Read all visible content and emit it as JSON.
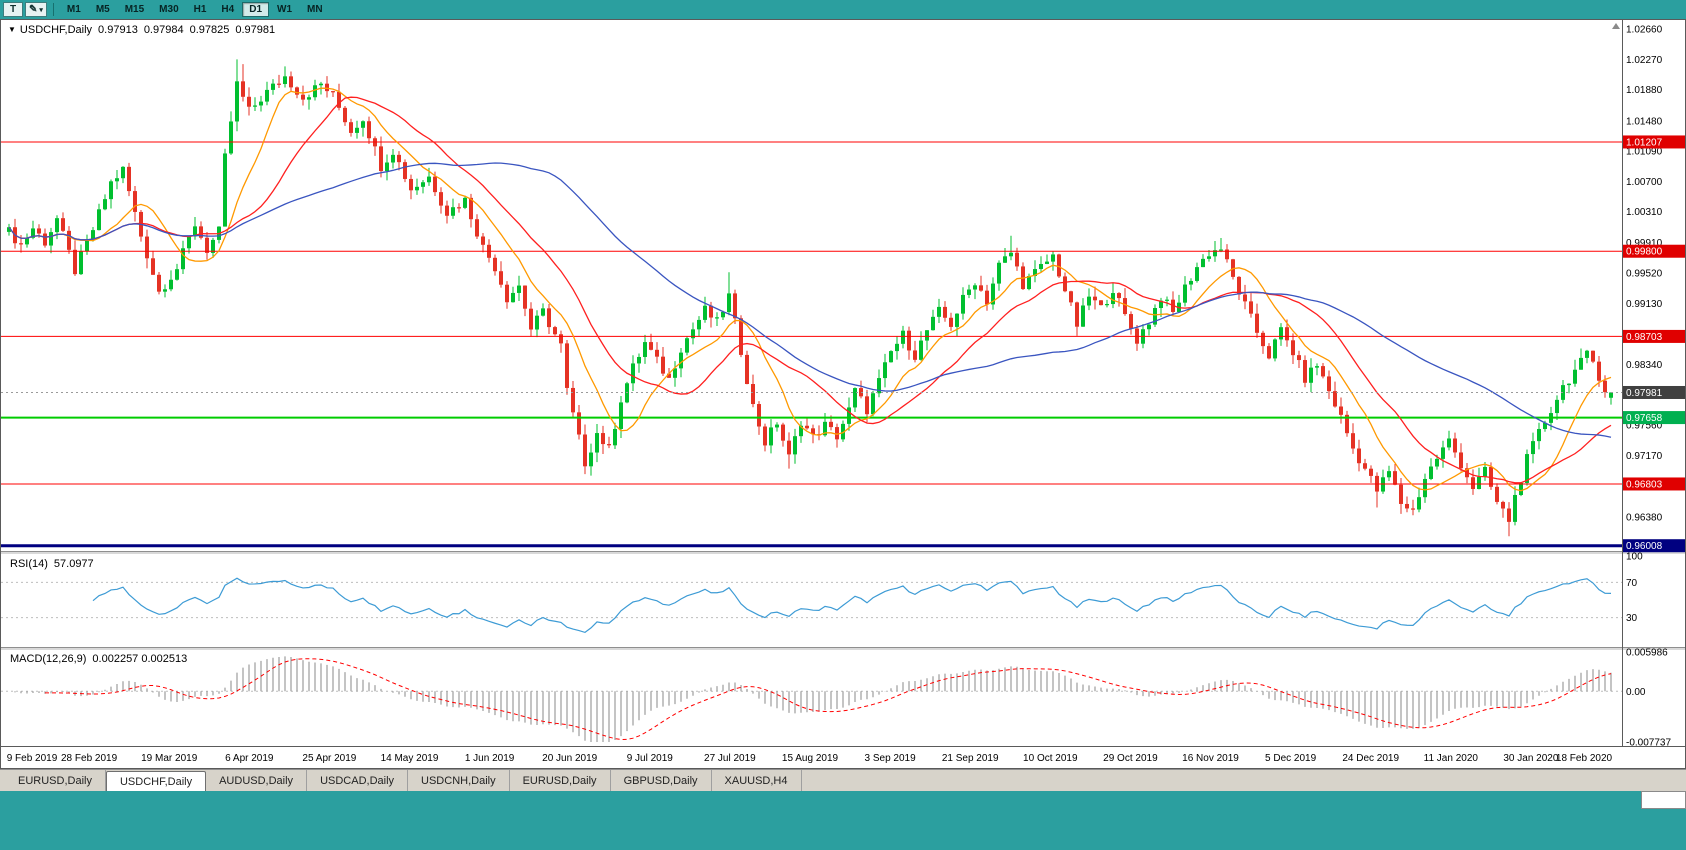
{
  "colors": {
    "teal": "#2b9f9f",
    "bull": "#00bf2f",
    "bear": "#e53224",
    "ma_fast": "#ff9900",
    "ma_mid": "#ff2020",
    "ma_slow": "#3a55c0",
    "rsi_line": "#3d9bd5",
    "macd_hist": "#8a8a8a",
    "macd_signal": "#ff0000",
    "level_red": "#ff0000",
    "level_red_tag": "#e00000",
    "level_green": "#00cc00",
    "level_green_tag": "#00b050",
    "level_navy": "#000080",
    "current_tag": "#404040"
  },
  "toolbar": {
    "template_button": "T",
    "pointer_button": "✎",
    "timeframes": [
      "M1",
      "M5",
      "M15",
      "M30",
      "H1",
      "H4",
      "D1",
      "W1",
      "MN"
    ],
    "active_timeframe": "D1"
  },
  "chart": {
    "title": {
      "symbol": "USDCHF,Daily",
      "open": "0.97913",
      "high": "0.97984",
      "low": "0.97825",
      "close": "0.97981"
    },
    "price_axis_ticks": [
      "1.02660",
      "1.02270",
      "1.01880",
      "1.01480",
      "1.01090",
      "1.00700",
      "1.00310",
      "0.99910",
      "0.99520",
      "0.99130",
      "0.98730",
      "0.98340",
      "0.97950",
      "0.97560",
      "0.97170",
      "0.96770",
      "0.96380",
      "0.95990"
    ],
    "levels": [
      {
        "price": 1.01207,
        "label": "1.01207",
        "line": "#ff0000",
        "tag": "#e00000",
        "width": 1
      },
      {
        "price": 0.998,
        "label": "0.99800",
        "line": "#ff0000",
        "tag": "#e00000",
        "width": 1
      },
      {
        "price": 0.98703,
        "label": "0.98703",
        "line": "#ff0000",
        "tag": "#e00000",
        "width": 1
      },
      {
        "price": 0.97658,
        "label": "0.97658",
        "line": "#00cc00",
        "tag": "#00b050",
        "width": 2
      },
      {
        "price": 0.96803,
        "label": "0.96803",
        "line": "#ff0000",
        "tag": "#e00000",
        "width": 1
      },
      {
        "price": 0.96008,
        "label": "0.96008",
        "line": "#000080",
        "tag": "#000080",
        "width": 3
      }
    ],
    "current_price": {
      "value": 0.97981,
      "label": "0.97981"
    },
    "x_axis_labels": [
      "9 Feb 2019",
      "28 Feb 2019",
      "19 Mar 2019",
      "6 Apr 2019",
      "25 Apr 2019",
      "14 May 2019",
      "1 Jun 2019",
      "20 Jun 2019",
      "9 Jul 2019",
      "27 Jul 2019",
      "15 Aug 2019",
      "3 Sep 2019",
      "21 Sep 2019",
      "10 Oct 2019",
      "29 Oct 2019",
      "16 Nov 2019",
      "5 Dec 2019",
      "24 Dec 2019",
      "11 Jan 2020",
      "30 Jan 2020",
      "18 Feb 2020"
    ]
  },
  "chart_data": {
    "type": "candlestick",
    "symbol": "USDCHF",
    "timeframe": "Daily",
    "y_range": [
      0.95939,
      1.0261
    ],
    "count": 268,
    "noise": 0.0014,
    "wick": 0.0013,
    "price_path": [
      [
        0,
        1.0005
      ],
      [
        2,
        0.9988
      ],
      [
        4,
        1.001
      ],
      [
        6,
        0.9992
      ],
      [
        8,
        1.0022
      ],
      [
        11,
        0.9955
      ],
      [
        14,
        1.0008
      ],
      [
        17,
        1.0068
      ],
      [
        19,
        1.0085
      ],
      [
        22,
        1.0
      ],
      [
        25,
        0.9928
      ],
      [
        28,
        0.9958
      ],
      [
        31,
        1.0015
      ],
      [
        33,
        0.9982
      ],
      [
        35,
        1.0005
      ],
      [
        36,
        1.01
      ],
      [
        38,
        1.0195
      ],
      [
        40,
        1.016
      ],
      [
        43,
        1.0185
      ],
      [
        46,
        1.0205
      ],
      [
        49,
        1.0178
      ],
      [
        52,
        1.0195
      ],
      [
        54,
        1.018
      ],
      [
        57,
        1.0135
      ],
      [
        59,
        1.0152
      ],
      [
        62,
        1.009
      ],
      [
        64,
        1.011
      ],
      [
        67,
        1.006
      ],
      [
        70,
        1.0076
      ],
      [
        73,
        1.003
      ],
      [
        76,
        1.0046
      ],
      [
        79,
        0.9985
      ],
      [
        81,
        0.996
      ],
      [
        83,
        0.992
      ],
      [
        85,
        0.9936
      ],
      [
        87,
        0.988
      ],
      [
        89,
        0.9902
      ],
      [
        92,
        0.9858
      ],
      [
        93,
        0.98
      ],
      [
        95,
        0.9738
      ],
      [
        96,
        0.9708
      ],
      [
        98,
        0.9746
      ],
      [
        100,
        0.9724
      ],
      [
        102,
        0.979
      ],
      [
        104,
        0.983
      ],
      [
        106,
        0.9862
      ],
      [
        108,
        0.9838
      ],
      [
        110,
        0.9815
      ],
      [
        112,
        0.9856
      ],
      [
        114,
        0.988
      ],
      [
        116,
        0.9904
      ],
      [
        118,
        0.9888
      ],
      [
        120,
        0.9922
      ],
      [
        122,
        0.9852
      ],
      [
        124,
        0.978
      ],
      [
        126,
        0.9734
      ],
      [
        128,
        0.976
      ],
      [
        130,
        0.9714
      ],
      [
        132,
        0.9762
      ],
      [
        134,
        0.974
      ],
      [
        136,
        0.9756
      ],
      [
        138,
        0.9742
      ],
      [
        140,
        0.9775
      ],
      [
        141,
        0.98
      ],
      [
        143,
        0.9776
      ],
      [
        145,
        0.9812
      ],
      [
        147,
        0.985
      ],
      [
        149,
        0.9872
      ],
      [
        151,
        0.9846
      ],
      [
        153,
        0.9878
      ],
      [
        155,
        0.9902
      ],
      [
        157,
        0.9886
      ],
      [
        159,
        0.9918
      ],
      [
        161,
        0.9942
      ],
      [
        163,
        0.9916
      ],
      [
        165,
        0.9962
      ],
      [
        167,
        0.9978
      ],
      [
        169,
        0.9938
      ],
      [
        171,
        0.9952
      ],
      [
        174,
        0.9974
      ],
      [
        176,
        0.993
      ],
      [
        178,
        0.9885
      ],
      [
        180,
        0.9922
      ],
      [
        182,
        0.9906
      ],
      [
        184,
        0.9932
      ],
      [
        186,
        0.9896
      ],
      [
        188,
        0.9866
      ],
      [
        190,
        0.989
      ],
      [
        192,
        0.9922
      ],
      [
        194,
        0.99
      ],
      [
        196,
        0.9933
      ],
      [
        198,
        0.996
      ],
      [
        200,
        0.9978
      ],
      [
        202,
        0.9984
      ],
      [
        204,
        0.9945
      ],
      [
        206,
        0.991
      ],
      [
        208,
        0.9876
      ],
      [
        210,
        0.9846
      ],
      [
        212,
        0.9878
      ],
      [
        214,
        0.985
      ],
      [
        216,
        0.9816
      ],
      [
        218,
        0.9834
      ],
      [
        220,
        0.98
      ],
      [
        222,
        0.9766
      ],
      [
        224,
        0.9726
      ],
      [
        226,
        0.97
      ],
      [
        228,
        0.9672
      ],
      [
        230,
        0.9696
      ],
      [
        232,
        0.9656
      ],
      [
        234,
        0.9646
      ],
      [
        236,
        0.9688
      ],
      [
        238,
        0.9714
      ],
      [
        240,
        0.9736
      ],
      [
        242,
        0.9706
      ],
      [
        244,
        0.9676
      ],
      [
        246,
        0.9696
      ],
      [
        248,
        0.9656
      ],
      [
        250,
        0.9634
      ],
      [
        251,
        0.9664
      ],
      [
        253,
        0.9712
      ],
      [
        255,
        0.9746
      ],
      [
        257,
        0.9776
      ],
      [
        259,
        0.9806
      ],
      [
        261,
        0.9826
      ],
      [
        263,
        0.9846
      ],
      [
        264,
        0.9838
      ],
      [
        266,
        0.9802
      ],
      [
        267,
        0.9798
      ]
    ],
    "wick_overrides": [
      {
        "i": 38,
        "h": 1.0227
      },
      {
        "i": 39,
        "h": 1.0221
      },
      {
        "i": 46,
        "h": 1.0218
      },
      {
        "i": 96,
        "l": 0.9693
      },
      {
        "i": 120,
        "h": 0.9953
      },
      {
        "i": 130,
        "l": 0.97
      },
      {
        "i": 167,
        "h": 1.0
      },
      {
        "i": 202,
        "h": 0.9997
      },
      {
        "i": 228,
        "l": 0.965
      },
      {
        "i": 234,
        "l": 0.964
      },
      {
        "i": 250,
        "l": 0.9613
      },
      {
        "i": 263,
        "h": 0.9853
      }
    ],
    "last_candle": {
      "o": 0.97913,
      "h": 0.97984,
      "l": 0.97825,
      "c": 0.97981
    },
    "moving_averages": [
      {
        "period": 10,
        "color_key": "ma_fast"
      },
      {
        "period": 21,
        "color_key": "ma_mid"
      },
      {
        "period": 55,
        "color_key": "ma_slow"
      }
    ]
  },
  "rsi": {
    "label": "RSI(14)",
    "value": "57.0977",
    "period": 14,
    "axis_ticks": [
      100,
      70,
      30
    ],
    "guides": [
      70,
      30
    ]
  },
  "macd": {
    "label": "MACD(12,26,9)",
    "values": "0.002257 0.002513",
    "fast": 12,
    "slow": 26,
    "signal": 9,
    "axis_ticks": [
      "0.005986",
      "0.00",
      "-0.007737"
    ],
    "range": [
      -0.007737,
      0.005986
    ]
  },
  "tabs": [
    {
      "label": "EURUSD,Daily",
      "active": false
    },
    {
      "label": "USDCHF,Daily",
      "active": true
    },
    {
      "label": "AUDUSD,Daily",
      "active": false
    },
    {
      "label": "USDCAD,Daily",
      "active": false
    },
    {
      "label": "USDCNH,Daily",
      "active": false
    },
    {
      "label": "EURUSD,Daily",
      "active": false
    },
    {
      "label": "GBPUSD,Daily",
      "active": false
    },
    {
      "label": "XAUUSD,H4",
      "active": false
    }
  ]
}
